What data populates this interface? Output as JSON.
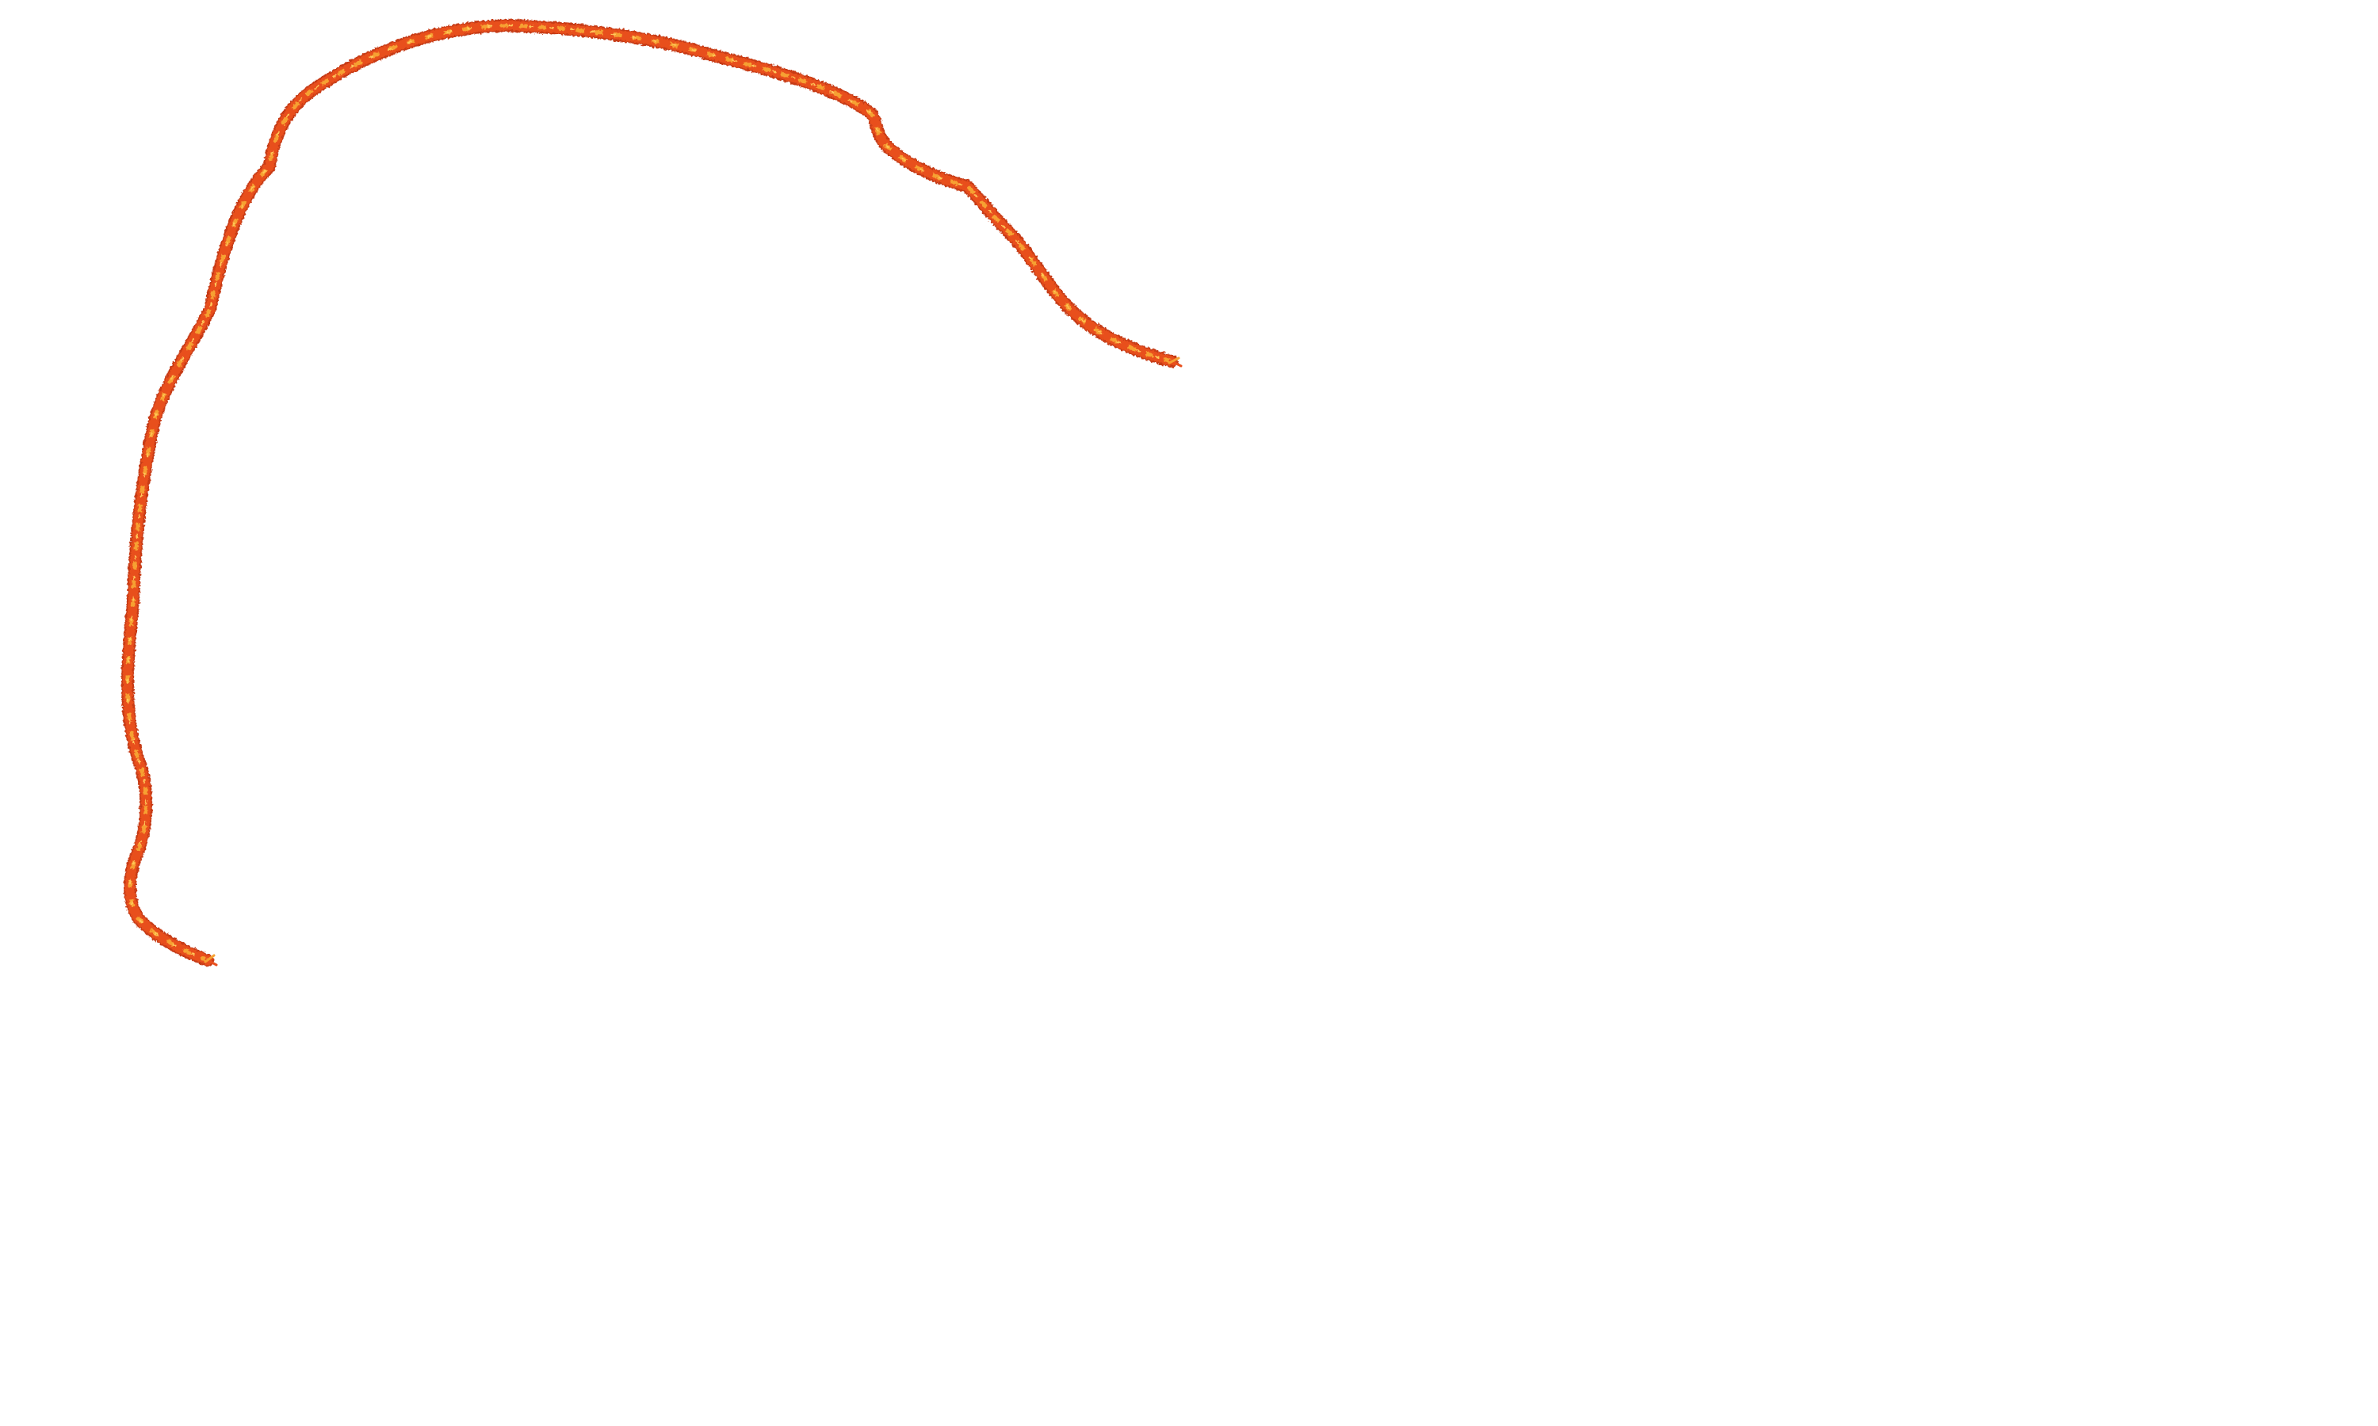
{
  "scene": {
    "background_color": "#ffffff",
    "subject": "twisted-thread",
    "thread_colors": {
      "base": "#e8501e",
      "dark": "#c63a14",
      "highlight": "#f6a133",
      "fiber": "#ffc85a"
    }
  }
}
